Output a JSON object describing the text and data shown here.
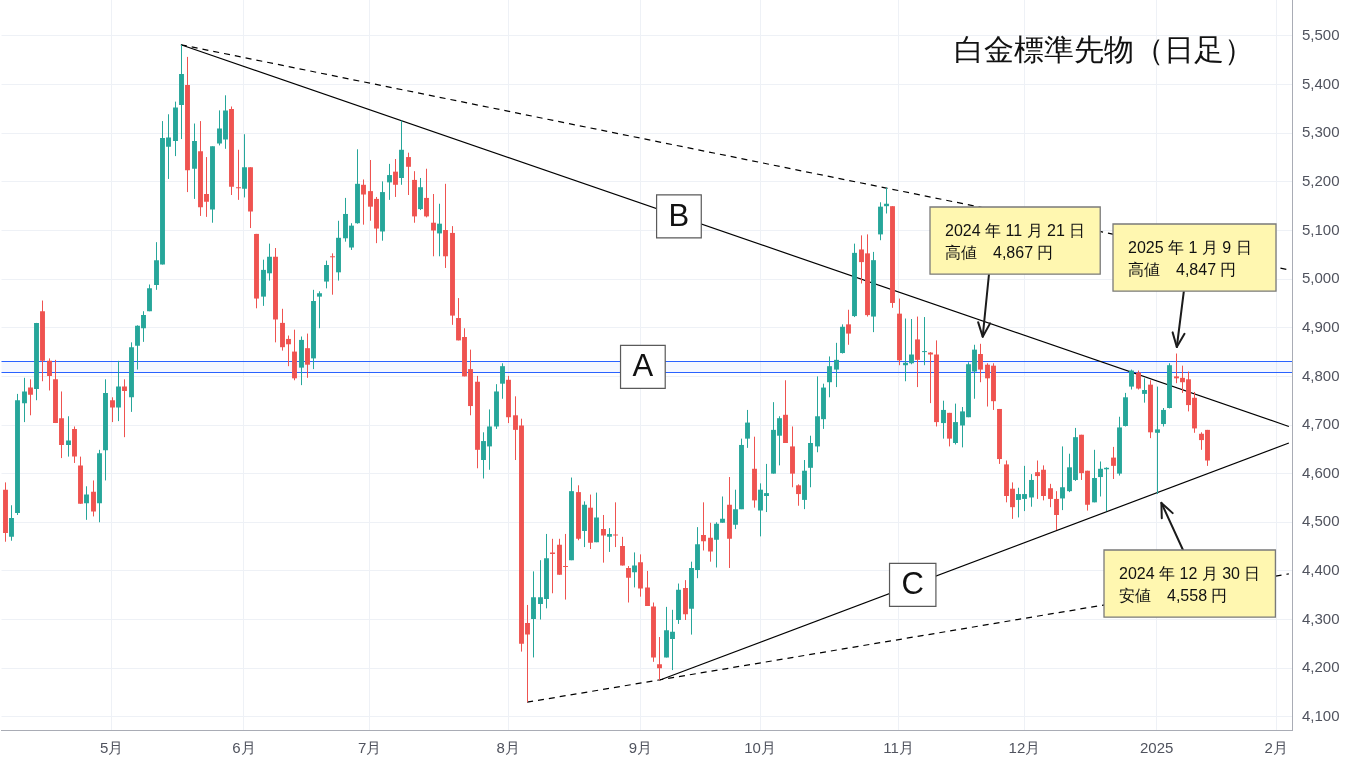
{
  "chart_data": {
    "type": "candlestick",
    "title": "白金標準先物（日足）",
    "categories": [
      null,
      null,
      null,
      null,
      null,
      null,
      null,
      null,
      null,
      null,
      null,
      null,
      null,
      null,
      null,
      null,
      null,
      "5月",
      null,
      null,
      null,
      null,
      null,
      null,
      null,
      null,
      null,
      null,
      null,
      null,
      null,
      null,
      null,
      null,
      null,
      null,
      null,
      null,
      "6月",
      null,
      null,
      null,
      null,
      null,
      null,
      null,
      null,
      null,
      null,
      null,
      null,
      null,
      null,
      null,
      null,
      null,
      null,
      null,
      "7月",
      null,
      null,
      null,
      null,
      null,
      null,
      null,
      null,
      null,
      null,
      null,
      null,
      null,
      null,
      null,
      null,
      null,
      null,
      null,
      null,
      null,
      "8月",
      null,
      null,
      null,
      null,
      null,
      null,
      null,
      null,
      null,
      null,
      null,
      null,
      null,
      null,
      null,
      null,
      null,
      null,
      null,
      null,
      "9月",
      null,
      null,
      null,
      null,
      null,
      null,
      null,
      null,
      null,
      null,
      null,
      null,
      null,
      null,
      null,
      null,
      null,
      null,
      "10月",
      null,
      null,
      null,
      null,
      null,
      null,
      null,
      null,
      null,
      null,
      null,
      null,
      null,
      null,
      null,
      null,
      null,
      null,
      null,
      null,
      null,
      "11月",
      null,
      null,
      null,
      null,
      null,
      null,
      null,
      null,
      null,
      null,
      null,
      null,
      null,
      null,
      null,
      null,
      null,
      null,
      null,
      "12月",
      null,
      null,
      null,
      null,
      null,
      null,
      null,
      null,
      null,
      null,
      null,
      null,
      null,
      null,
      null,
      null,
      null,
      null,
      null,
      null,
      "2025",
      null,
      null,
      null,
      null,
      null,
      null,
      null,
      null,
      null,
      null,
      null,
      null,
      null,
      null,
      null,
      null,
      null,
      null,
      "2月",
      null,
      null
    ],
    "ohlc": [
      [
        4567,
        4582,
        4460,
        4478
      ],
      [
        4470,
        4535,
        4462,
        4509
      ],
      [
        4519,
        4764,
        4515,
        4751
      ],
      [
        4745,
        4797,
        4706,
        4769
      ],
      [
        4777,
        4794,
        4720,
        4762
      ],
      [
        4774,
        4910,
        4751,
        4910
      ],
      [
        4934,
        4956,
        4790,
        4832
      ],
      [
        4832,
        4837,
        4771,
        4801
      ],
      [
        4794,
        4834,
        4704,
        4704
      ],
      [
        4714,
        4769,
        4632,
        4659
      ],
      [
        4659,
        4718,
        4635,
        4668
      ],
      [
        4692,
        4697,
        4622,
        4635
      ],
      [
        4617,
        4635,
        4538,
        4538
      ],
      [
        4539,
        4574,
        4505,
        4557
      ],
      [
        4563,
        4586,
        4512,
        4522
      ],
      [
        4539,
        4649,
        4500,
        4642
      ],
      [
        4648,
        4794,
        4586,
        4766
      ],
      [
        4751,
        4757,
        4706,
        4736
      ],
      [
        4736,
        4832,
        4708,
        4779
      ],
      [
        4779,
        4794,
        4675,
        4770
      ],
      [
        4757,
        4870,
        4727,
        4860
      ],
      [
        4863,
        4905,
        4814,
        4904
      ],
      [
        4899,
        4934,
        4871,
        4926
      ],
      [
        4934,
        4989,
        4934,
        4981
      ],
      [
        4988,
        5076,
        4978,
        5039
      ],
      [
        5030,
        5325,
        5030,
        5290
      ],
      [
        5272,
        5339,
        5206,
        5291
      ],
      [
        5284,
        5365,
        5253,
        5353
      ],
      [
        5358,
        5482,
        5288,
        5422
      ],
      [
        5399,
        5457,
        5179,
        5224
      ],
      [
        5227,
        5320,
        5165,
        5284
      ],
      [
        5263,
        5325,
        5130,
        5148
      ],
      [
        5175,
        5251,
        5128,
        5159
      ],
      [
        5143,
        5273,
        5116,
        5273
      ],
      [
        5279,
        5347,
        5275,
        5310
      ],
      [
        5287,
        5378,
        5268,
        5347
      ],
      [
        5350,
        5355,
        5173,
        5190
      ],
      [
        5189,
        5266,
        5163,
        5187
      ],
      [
        5186,
        5298,
        5168,
        5230
      ],
      [
        5230,
        5230,
        5105,
        5139
      ],
      [
        5093,
        5093,
        4940,
        4960
      ],
      [
        4964,
        5040,
        4945,
        5019
      ],
      [
        5012,
        5073,
        4997,
        5046
      ],
      [
        5046,
        5064,
        4870,
        4917
      ],
      [
        4910,
        4939,
        4853,
        4860
      ],
      [
        4877,
        4884,
        4821,
        4866
      ],
      [
        4851,
        4896,
        4792,
        4796
      ],
      [
        4818,
        4882,
        4782,
        4875
      ],
      [
        4858,
        4888,
        4797,
        4824
      ],
      [
        4837,
        4978,
        4815,
        4955
      ],
      [
        4964,
        4975,
        4899,
        4971
      ],
      [
        4995,
        5038,
        4981,
        5029
      ],
      [
        5047,
        5053,
        4968,
        5045
      ],
      [
        5014,
        5120,
        4997,
        5085
      ],
      [
        5084,
        5167,
        5077,
        5134
      ],
      [
        5065,
        5115,
        5060,
        5110
      ],
      [
        5115,
        5267,
        5114,
        5196
      ],
      [
        5194,
        5205,
        5112,
        5174
      ],
      [
        5181,
        5245,
        5120,
        5149
      ],
      [
        5165,
        5169,
        5074,
        5104
      ],
      [
        5098,
        5201,
        5079,
        5179
      ],
      [
        5199,
        5237,
        5163,
        5214
      ],
      [
        5221,
        5247,
        5169,
        5194
      ],
      [
        5208,
        5326,
        5194,
        5266
      ],
      [
        5251,
        5260,
        5173,
        5231
      ],
      [
        5204,
        5222,
        5116,
        5129
      ],
      [
        5144,
        5208,
        5142,
        5189
      ],
      [
        5167,
        5227,
        5127,
        5129
      ],
      [
        5116,
        5175,
        5047,
        5100
      ],
      [
        5094,
        5155,
        5047,
        5114
      ],
      [
        5101,
        5196,
        5023,
        5047
      ],
      [
        5095,
        5109,
        4906,
        4925
      ],
      [
        4920,
        4961,
        4874,
        4874
      ],
      [
        4881,
        4899,
        4800,
        4800
      ],
      [
        4815,
        4855,
        4720,
        4739
      ],
      [
        4789,
        4801,
        4611,
        4649
      ],
      [
        4628,
        4685,
        4590,
        4667
      ],
      [
        4656,
        4732,
        4608,
        4697
      ],
      [
        4697,
        4784,
        4692,
        4769
      ],
      [
        4785,
        4827,
        4754,
        4821
      ],
      [
        4793,
        4801,
        4704,
        4716
      ],
      [
        4720,
        4759,
        4628,
        4690
      ],
      [
        4699,
        4713,
        4234,
        4250
      ],
      [
        4293,
        4330,
        4130,
        4269
      ],
      [
        4301,
        4399,
        4222,
        4346
      ],
      [
        4332,
        4422,
        4300,
        4346
      ],
      [
        4342,
        4476,
        4323,
        4426
      ],
      [
        4438,
        4466,
        4354,
        4435
      ],
      [
        4454,
        4466,
        4392,
        4392
      ],
      [
        4410,
        4476,
        4341,
        4408
      ],
      [
        4422,
        4592,
        4422,
        4564
      ],
      [
        4562,
        4576,
        4463,
        4466
      ],
      [
        4482,
        4543,
        4449,
        4536
      ],
      [
        4530,
        4557,
        4445,
        4458
      ],
      [
        4459,
        4561,
        4459,
        4510
      ],
      [
        4486,
        4515,
        4417,
        4473
      ],
      [
        4470,
        4488,
        4439,
        4476
      ],
      [
        4475,
        4541,
        4449,
        4473
      ],
      [
        4451,
        4470,
        4411,
        4411
      ],
      [
        4406,
        4410,
        4335,
        4386
      ],
      [
        4397,
        4438,
        4366,
        4411
      ],
      [
        4418,
        4434,
        4347,
        4364
      ],
      [
        4366,
        4400,
        4328,
        4328
      ],
      [
        4327,
        4335,
        4213,
        4222
      ],
      [
        4208,
        4264,
        4175,
        4200
      ],
      [
        4222,
        4326,
        4222,
        4278
      ],
      [
        4260,
        4320,
        4196,
        4275
      ],
      [
        4299,
        4374,
        4291,
        4361
      ],
      [
        4365,
        4381,
        4299,
        4311
      ],
      [
        4322,
        4419,
        4269,
        4406
      ],
      [
        4402,
        4490,
        4385,
        4455
      ],
      [
        4474,
        4541,
        4442,
        4461
      ],
      [
        4468,
        4499,
        4419,
        4440
      ],
      [
        4464,
        4500,
        4407,
        4497
      ],
      [
        4499,
        4553,
        4499,
        4507
      ],
      [
        4536,
        4593,
        4406,
        4466
      ],
      [
        4495,
        4567,
        4486,
        4527
      ],
      [
        4527,
        4672,
        4527,
        4659
      ],
      [
        4672,
        4731,
        4653,
        4705
      ],
      [
        4610,
        4676,
        4530,
        4545
      ],
      [
        4524,
        4580,
        4471,
        4567
      ],
      [
        4554,
        4620,
        4521,
        4560
      ],
      [
        4600,
        4747,
        4600,
        4690
      ],
      [
        4678,
        4718,
        4617,
        4714
      ],
      [
        4721,
        4792,
        4663,
        4663
      ],
      [
        4656,
        4697,
        4572,
        4600
      ],
      [
        4576,
        4578,
        4534,
        4558
      ],
      [
        4546,
        4628,
        4527,
        4606
      ],
      [
        4612,
        4678,
        4572,
        4663
      ],
      [
        4656,
        4800,
        4644,
        4718
      ],
      [
        4712,
        4785,
        4692,
        4777
      ],
      [
        4788,
        4841,
        4757,
        4821
      ],
      [
        4814,
        4869,
        4778,
        4834
      ],
      [
        4848,
        4907,
        4847,
        4902
      ],
      [
        4907,
        4937,
        4865,
        4888
      ],
      [
        4924,
        5073,
        4922,
        5054
      ],
      [
        5061,
        5090,
        4991,
        5035
      ],
      [
        5053,
        5092,
        4923,
        4926
      ],
      [
        4923,
        5056,
        4891,
        5039
      ],
      [
        5092,
        5158,
        5080,
        5149
      ],
      [
        5150,
        5188,
        5135,
        5155
      ],
      [
        5150,
        5150,
        4941,
        4951
      ],
      [
        4929,
        4960,
        4823,
        4833
      ],
      [
        4823,
        4919,
        4790,
        4828
      ],
      [
        4827,
        4918,
        4825,
        4845
      ],
      [
        4876,
        4923,
        4778,
        4834
      ],
      [
        4850,
        4922,
        4823,
        4852
      ],
      [
        4849,
        4850,
        4745,
        4845
      ],
      [
        4845,
        4874,
        4697,
        4706
      ],
      [
        4704,
        4750,
        4672,
        4731
      ],
      [
        4725,
        4725,
        4656,
        4672
      ],
      [
        4663,
        4744,
        4660,
        4706
      ],
      [
        4699,
        4737,
        4654,
        4728
      ],
      [
        4716,
        4829,
        4716,
        4825
      ],
      [
        4810,
        4865,
        4754,
        4855
      ],
      [
        4846,
        4867,
        4788,
        4814
      ],
      [
        4824,
        4827,
        4738,
        4796
      ],
      [
        4822,
        4827,
        4731,
        4749
      ],
      [
        4733,
        4733,
        4620,
        4630
      ],
      [
        4619,
        4627,
        4541,
        4554
      ],
      [
        4569,
        4582,
        4507,
        4531
      ],
      [
        4546,
        4571,
        4510,
        4558
      ],
      [
        4548,
        4616,
        4523,
        4558
      ],
      [
        4551,
        4599,
        4532,
        4587
      ],
      [
        4603,
        4627,
        4548,
        4595
      ],
      [
        4608,
        4617,
        4545,
        4554
      ],
      [
        4570,
        4579,
        4531,
        4548
      ],
      [
        4548,
        4564,
        4484,
        4515
      ],
      [
        4549,
        4656,
        4525,
        4572
      ],
      [
        4564,
        4641,
        4562,
        4613
      ],
      [
        4587,
        4694,
        4585,
        4675
      ],
      [
        4680,
        4680,
        4587,
        4601
      ],
      [
        4606,
        4606,
        4524,
        4536
      ],
      [
        4541,
        4649,
        4541,
        4591
      ],
      [
        4593,
        4625,
        4553,
        4610
      ],
      [
        4609,
        4613,
        4523,
        4612
      ],
      [
        4633,
        4655,
        4589,
        4616
      ],
      [
        4600,
        4717,
        4596,
        4695
      ],
      [
        4698,
        4766,
        4697,
        4757
      ],
      [
        4779,
        4814,
        4773,
        4812
      ],
      [
        4808,
        4812,
        4773,
        4775
      ],
      [
        4764,
        4796,
        4746,
        4772
      ],
      [
        4783,
        4792,
        4673,
        4685
      ],
      [
        4684,
        4779,
        4558,
        4691
      ],
      [
        4702,
        4735,
        4697,
        4731
      ],
      [
        4735,
        4827,
        4734,
        4823
      ],
      [
        4800,
        4847,
        4786,
        4796
      ],
      [
        4797,
        4822,
        4766,
        4788
      ],
      [
        4794,
        4810,
        4728,
        4741
      ],
      [
        4756,
        4768,
        4684,
        4693
      ],
      [
        4682,
        4685,
        4649,
        4669
      ],
      [
        4690,
        4690,
        4616,
        4627
      ],
      null,
      null,
      null,
      null,
      null,
      null,
      null,
      null,
      null,
      null,
      null,
      null,
      null
    ],
    "colors": [
      "#ef5350",
      "#26a69a",
      "#26a69a",
      "#26a69a",
      "#ef5350",
      "#26a69a",
      "#ef5350",
      "#ef5350",
      "#ef5350",
      "#ef5350",
      "#26a69a",
      "#ef5350",
      "#ef5350",
      "#26a69a",
      "#ef5350",
      "#26a69a",
      "#26a69a",
      "#ef5350",
      "#26a69a",
      "#ef5350",
      "#26a69a",
      "#26a69a",
      "#26a69a",
      "#26a69a",
      "#26a69a",
      "#26a69a",
      "#26a69a",
      "#26a69a",
      "#26a69a",
      "#ef5350",
      "#26a69a",
      "#ef5350",
      "#ef5350",
      "#26a69a",
      "#26a69a",
      "#26a69a",
      "#ef5350",
      "#ef5350",
      "#26a69a",
      "#ef5350",
      "#ef5350",
      "#26a69a",
      "#26a69a",
      "#ef5350",
      "#ef5350",
      "#ef5350",
      "#ef5350",
      "#26a69a",
      "#ef5350",
      "#26a69a",
      "#26a69a",
      "#26a69a",
      "#ef5350",
      "#26a69a",
      "#26a69a",
      "#26a69a",
      "#26a69a",
      "#ef5350",
      "#ef5350",
      "#ef5350",
      "#26a69a",
      "#26a69a",
      "#ef5350",
      "#26a69a",
      "#ef5350",
      "#ef5350",
      "#26a69a",
      "#ef5350",
      "#ef5350",
      "#26a69a",
      "#ef5350",
      "#ef5350",
      "#ef5350",
      "#ef5350",
      "#ef5350",
      "#ef5350",
      "#26a69a",
      "#26a69a",
      "#26a69a",
      "#26a69a",
      "#ef5350",
      "#ef5350",
      "#ef5350",
      "#ef5350",
      "#26a69a",
      "#26a69a",
      "#26a69a",
      "#ef5350",
      "#ef5350",
      "#ef5350",
      "#26a69a",
      "#ef5350",
      "#26a69a",
      "#ef5350",
      "#26a69a",
      "#ef5350",
      "#26a69a",
      "#ef5350",
      "#ef5350",
      "#ef5350",
      "#26a69a",
      "#ef5350",
      "#ef5350",
      "#ef5350",
      "#ef5350",
      "#26a69a",
      "#26a69a",
      "#26a69a",
      "#ef5350",
      "#26a69a",
      "#26a69a",
      "#ef5350",
      "#ef5350",
      "#26a69a",
      "#26a69a",
      "#ef5350",
      "#26a69a",
      "#26a69a",
      "#26a69a",
      "#ef5350",
      "#26a69a",
      "#26a69a",
      "#26a69a",
      "#26a69a",
      "#ef5350",
      "#ef5350",
      "#ef5350",
      "#26a69a",
      "#26a69a",
      "#26a69a",
      "#26a69a",
      "#26a69a",
      "#26a69a",
      "#26a69a",
      "#ef5350",
      "#26a69a",
      "#ef5350",
      "#ef5350",
      "#26a69a",
      "#26a69a",
      "#26a69a",
      "#ef5350",
      "#ef5350",
      "#26a69a",
      "#26a69a",
      "#ef5350",
      "#26a69a",
      "#ef5350",
      "#ef5350",
      "#26a69a",
      "#ef5350",
      "#26a69a",
      "#26a69a",
      "#26a69a",
      "#26a69a",
      "#ef5350",
      "#ef5350",
      "#ef5350",
      "#ef5350",
      "#ef5350",
      "#ef5350",
      "#26a69a",
      "#26a69a",
      "#26a69a",
      "#ef5350",
      "#ef5350",
      "#ef5350",
      "#ef5350",
      "#26a69a",
      "#26a69a",
      "#26a69a",
      "#ef5350",
      "#ef5350",
      "#26a69a",
      "#26a69a",
      "#26a69a",
      "#ef5350",
      "#26a69a",
      "#26a69a",
      "#26a69a",
      "#ef5350",
      "#26a69a",
      "#ef5350",
      "#26a69a",
      "#26a69a",
      "#26a69a",
      "#ef5350",
      "#ef5350",
      "#ef5350",
      "#ef5350",
      "#ef5350",
      "#ef5350",
      null,
      null,
      null,
      null,
      null,
      null,
      null,
      null,
      null,
      null,
      null,
      null,
      null
    ],
    "series": [
      {
        "type": "line",
        "name": "B",
        "color": "#000000",
        "values": [
          null,
          null,
          null,
          null,
          null,
          null,
          null,
          null,
          null,
          null,
          null,
          null,
          null,
          null,
          null,
          null,
          null,
          null,
          null,
          null,
          null,
          null,
          null,
          null,
          null,
          null,
          null,
          null,
          5482,
          null,
          null,
          null,
          null,
          null,
          null,
          null,
          null,
          null,
          null,
          null,
          null,
          null,
          null,
          null,
          null,
          null,
          null,
          null,
          null,
          null,
          null,
          null,
          null,
          null,
          null,
          null,
          null,
          null,
          null,
          null,
          null,
          null,
          null,
          null,
          null,
          null,
          null,
          null,
          null,
          null,
          null,
          null,
          null,
          null,
          null,
          null,
          null,
          null,
          null,
          null,
          null,
          null,
          null,
          null,
          null,
          null,
          null,
          null,
          null,
          null,
          null,
          null,
          null,
          null,
          null,
          null,
          null,
          null,
          null,
          null,
          null,
          null,
          null,
          null,
          null,
          null,
          null,
          null,
          null,
          null,
          null,
          null,
          null,
          null,
          null,
          null,
          null,
          null,
          null,
          null,
          null,
          null,
          null,
          null,
          null,
          null,
          null,
          null,
          null,
          null,
          null,
          null,
          null,
          null,
          null,
          null,
          null,
          null,
          null,
          null,
          null,
          null,
          null,
          null,
          null,
          null,
          null,
          null,
          null,
          null,
          null,
          null,
          null,
          null,
          null,
          null,
          null,
          null,
          null,
          null,
          null,
          null,
          null,
          null,
          null,
          null,
          null,
          null,
          null,
          null,
          null,
          null,
          null,
          null,
          null,
          null,
          null,
          null,
          null,
          null,
          null,
          null,
          null,
          null,
          null,
          null,
          null,
          null,
          null,
          null,
          null,
          null,
          null,
          null,
          null,
          null,
          null,
          null,
          null,
          null,
          null,
          null,
          null,
          null,
          4697
        ]
      },
      {
        "type": "line",
        "color": "#000000",
        "line_style": "dashed",
        "values": [
          null,
          null,
          null,
          null,
          null,
          null,
          null,
          null,
          null,
          null,
          null,
          null,
          null,
          null,
          null,
          null,
          null,
          null,
          null,
          null,
          null,
          null,
          null,
          null,
          null,
          null,
          null,
          null,
          5482,
          null,
          null,
          null,
          null,
          null,
          null,
          null,
          null,
          null,
          null,
          null,
          null,
          null,
          null,
          null,
          null,
          null,
          null,
          null,
          null,
          null,
          null,
          null,
          null,
          null,
          null,
          null,
          null,
          null,
          null,
          null,
          null,
          null,
          null,
          null,
          null,
          null,
          null,
          null,
          null,
          null,
          null,
          null,
          null,
          null,
          null,
          null,
          null,
          null,
          null,
          null,
          null,
          null,
          null,
          null,
          null,
          null,
          null,
          null,
          null,
          null,
          null,
          null,
          null,
          null,
          null,
          null,
          null,
          null,
          null,
          null,
          null,
          null,
          null,
          null,
          null,
          null,
          null,
          null,
          null,
          null,
          null,
          null,
          null,
          null,
          null,
          null,
          null,
          null,
          null,
          null,
          null,
          null,
          null,
          null,
          null,
          null,
          null,
          null,
          null,
          null,
          null,
          null,
          null,
          null,
          null,
          null,
          null,
          null,
          null,
          null,
          null,
          null,
          null,
          null,
          null,
          null,
          null,
          null,
          null,
          null,
          null,
          null,
          null,
          null,
          null,
          null,
          null,
          null,
          null,
          null,
          null,
          null,
          null,
          null,
          null,
          null,
          null,
          null,
          null,
          null,
          null,
          null,
          null,
          null,
          null,
          null,
          null,
          null,
          null,
          null,
          null,
          null,
          null,
          null,
          null,
          null,
          null,
          null,
          null,
          null,
          null,
          null,
          null,
          null,
          null,
          null,
          null,
          null,
          null,
          null,
          null,
          null,
          null,
          null,
          5019
        ]
      },
      {
        "type": "line",
        "name": "C",
        "color": "#000000",
        "values": [
          null,
          null,
          null,
          null,
          null,
          null,
          null,
          null,
          null,
          null,
          null,
          null,
          null,
          null,
          null,
          null,
          null,
          null,
          null,
          null,
          null,
          null,
          null,
          null,
          null,
          null,
          null,
          null,
          null,
          null,
          null,
          null,
          null,
          null,
          null,
          null,
          null,
          null,
          null,
          null,
          null,
          null,
          null,
          null,
          null,
          null,
          null,
          null,
          null,
          null,
          null,
          null,
          null,
          null,
          null,
          null,
          null,
          null,
          null,
          null,
          null,
          null,
          null,
          null,
          null,
          null,
          null,
          null,
          null,
          null,
          null,
          null,
          null,
          null,
          null,
          null,
          null,
          null,
          null,
          null,
          null,
          null,
          null,
          null,
          null,
          null,
          null,
          null,
          null,
          null,
          null,
          null,
          null,
          null,
          null,
          null,
          null,
          null,
          null,
          null,
          null,
          null,
          null,
          null,
          4175,
          null,
          null,
          null,
          null,
          null,
          null,
          null,
          null,
          null,
          null,
          null,
          null,
          null,
          null,
          null,
          null,
          null,
          null,
          null,
          null,
          null,
          null,
          null,
          null,
          null,
          null,
          null,
          null,
          null,
          null,
          null,
          null,
          null,
          null,
          null,
          null,
          null,
          null,
          null,
          null,
          null,
          null,
          null,
          null,
          null,
          null,
          null,
          null,
          null,
          null,
          null,
          null,
          null,
          null,
          null,
          null,
          null,
          null,
          null,
          null,
          null,
          null,
          null,
          null,
          null,
          null,
          null,
          null,
          null,
          null,
          null,
          null,
          null,
          null,
          null,
          null,
          null,
          null,
          null,
          null,
          null,
          null,
          null,
          null,
          null,
          null,
          null,
          null,
          null,
          null,
          null,
          null,
          null,
          null,
          null,
          null,
          null,
          null,
          null,
          4663
        ]
      },
      {
        "type": "line",
        "color": "#000000",
        "line_style": "dashed",
        "values": [
          null,
          null,
          null,
          null,
          null,
          null,
          null,
          null,
          null,
          null,
          null,
          null,
          null,
          null,
          null,
          null,
          null,
          null,
          null,
          null,
          null,
          null,
          null,
          null,
          null,
          null,
          null,
          null,
          null,
          null,
          null,
          null,
          null,
          null,
          null,
          null,
          null,
          null,
          null,
          null,
          null,
          null,
          null,
          null,
          null,
          null,
          null,
          null,
          null,
          null,
          null,
          null,
          null,
          null,
          null,
          null,
          null,
          null,
          null,
          null,
          null,
          null,
          null,
          null,
          null,
          null,
          null,
          null,
          null,
          null,
          null,
          null,
          null,
          null,
          null,
          null,
          null,
          null,
          null,
          null,
          null,
          null,
          null,
          4130,
          null,
          null,
          null,
          null,
          null,
          null,
          null,
          null,
          null,
          null,
          null,
          null,
          null,
          null,
          null,
          null,
          null,
          null,
          null,
          null,
          null,
          null,
          null,
          null,
          null,
          null,
          null,
          null,
          null,
          null,
          null,
          null,
          null,
          null,
          null,
          null,
          null,
          null,
          null,
          null,
          null,
          null,
          null,
          null,
          null,
          null,
          null,
          null,
          null,
          null,
          null,
          null,
          null,
          null,
          null,
          null,
          null,
          null,
          null,
          null,
          null,
          null,
          null,
          null,
          null,
          null,
          null,
          null,
          null,
          null,
          null,
          null,
          null,
          null,
          null,
          null,
          null,
          null,
          null,
          null,
          null,
          null,
          null,
          null,
          null,
          null,
          null,
          null,
          null,
          null,
          null,
          null,
          null,
          null,
          null,
          null,
          null,
          null,
          null,
          null,
          null,
          null,
          null,
          null,
          null,
          null,
          null,
          null,
          null,
          null,
          null,
          null,
          null,
          null,
          null,
          null,
          null,
          null,
          null,
          null,
          4394
        ]
      }
    ],
    "bands": [
      {
        "axis": "y",
        "from": 4808,
        "to": 4831,
        "label": "A",
        "color": "#2962ff"
      }
    ],
    "ref_lines": [
      {
        "axis": "y",
        "value": 4831,
        "color": "#2962ff"
      },
      {
        "axis": "y",
        "value": 4808,
        "color": "#2962ff"
      }
    ],
    "annotations": [
      "2024 年 11 月 21 日",
      "高値　4,867 円",
      "2025 年 1 月 9 日",
      "高値　4,847 円",
      "2024 年 12 月 30 日",
      "安値　4,558 円"
    ],
    "ylim": [
      4072,
      5574
    ],
    "yticks": [
      {
        "value": 4100,
        "label": "4,100"
      },
      {
        "value": 4200,
        "label": "4,200"
      },
      {
        "value": 4300,
        "label": "4,300"
      },
      {
        "value": 4400,
        "label": "4,400"
      },
      {
        "value": 4500,
        "label": "4,500"
      },
      {
        "value": 4600,
        "label": "4,600"
      },
      {
        "value": 4700,
        "label": "4,700"
      },
      {
        "value": 4800,
        "label": "4,800"
      },
      {
        "value": 4900,
        "label": "4,900"
      },
      {
        "value": 5000,
        "label": "5,000"
      },
      {
        "value": 5100,
        "label": "5,100"
      },
      {
        "value": 5200,
        "label": "5,200"
      },
      {
        "value": 5300,
        "label": "5,300"
      },
      {
        "value": 5400,
        "label": "5,400"
      },
      {
        "value": 5500,
        "label": "5,500"
      }
    ],
    "grid": true
  }
}
